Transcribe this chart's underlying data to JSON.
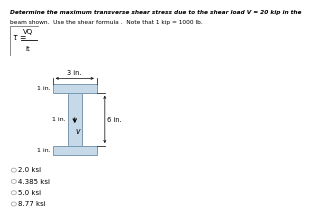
{
  "title_line1": "Determine the maximum transverse shear stress due to the shear load V = 20 kip in the",
  "title_line2": "beam shown.  Use the shear formula .  Note that 1 kip = 1000 lb.",
  "i_beam_color": "#c5d9e8",
  "i_beam_edge": "#7a9ab0",
  "options": [
    "2.0 ksi",
    "4.385 ksi",
    "5.0 ksi",
    "8.77 ksi"
  ],
  "dim_3in": "3 in.",
  "dim_6in": "6 in.",
  "dim_1in_top": "1 in.",
  "dim_1in_web": "1 in.",
  "dim_1in_bot": "1 in.",
  "bg_color": "#ffffff",
  "title_fontsize": 4.2,
  "label_fontsize": 4.8,
  "option_fontsize": 5.0
}
